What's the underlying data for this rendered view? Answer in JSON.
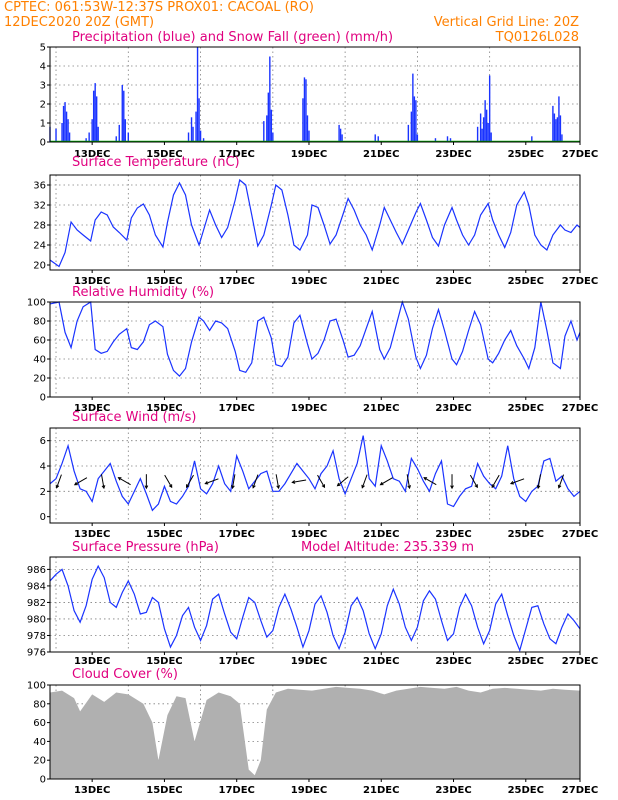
{
  "header": {
    "line1_left": "CPTEC:  061:53W-12:37S   PROX01: CACOAL (RO)",
    "line2_left": "12DEC2020 20Z (GMT)",
    "line2_right": "Vertical Grid Line: 20Z",
    "line3_right": "TQ0126L028"
  },
  "colors": {
    "precip": "#1a33ff",
    "snow": "#00aa00",
    "line": "#1a33ff",
    "arrow": "#000000",
    "cloud": "#b0b0b0",
    "header": "#ff8000",
    "title": "#e0007f"
  },
  "x_axis": {
    "start": "2020-12-12 20Z",
    "end": "2020-12-27 00Z",
    "tick_labels": [
      "13DEC",
      "15DEC",
      "17DEC",
      "19DEC",
      "21DEC",
      "23DEC",
      "25DEC",
      "27DEC"
    ]
  },
  "chart_data": [
    {
      "type": "bar",
      "title": "Precipitation (blue) and Snow Fall (green) (mm/h)",
      "ylim": [
        0,
        5
      ],
      "yticks": [
        "0",
        "1",
        "2",
        "3",
        "4",
        "5"
      ],
      "grid": true,
      "series": [
        {
          "name": "Precipitation",
          "color": "#1a33ff",
          "points": [
            [
              "12DEC20Z",
              0.8
            ],
            [
              "13DEC00Z",
              0.7
            ],
            [
              "13DEC04Z",
              1.0
            ],
            [
              "13DEC05Z",
              1.9
            ],
            [
              "13DEC06Z",
              2.1
            ],
            [
              "13DEC07Z",
              1.6
            ],
            [
              "13DEC08Z",
              1.2
            ],
            [
              "13DEC09Z",
              0.5
            ],
            [
              "13DEC20Z",
              0.2
            ],
            [
              "13DEC22Z",
              0.5
            ],
            [
              "14DEC00Z",
              1.2
            ],
            [
              "14DEC01Z",
              2.7
            ],
            [
              "14DEC02Z",
              3.1
            ],
            [
              "14DEC03Z",
              2.4
            ],
            [
              "14DEC04Z",
              0.8
            ],
            [
              "14DEC16Z",
              0.3
            ],
            [
              "14DEC18Z",
              0.9
            ],
            [
              "14DEC20Z",
              3.0
            ],
            [
              "14DEC21Z",
              2.7
            ],
            [
              "14DEC22Z",
              1.2
            ],
            [
              "15DEC00Z",
              0.5
            ],
            [
              "16DEC16Z",
              0.5
            ],
            [
              "16DEC18Z",
              1.3
            ],
            [
              "16DEC19Z",
              0.8
            ],
            [
              "16DEC21Z",
              1.6
            ],
            [
              "16DEC22Z",
              5.0
            ],
            [
              "16DEC23Z",
              2.3
            ],
            [
              "17DEC00Z",
              0.6
            ],
            [
              "17DEC02Z",
              0.2
            ],
            [
              "18DEC18Z",
              1.1
            ],
            [
              "18DEC20Z",
              1.4
            ],
            [
              "18DEC21Z",
              2.6
            ],
            [
              "18DEC22Z",
              4.5
            ],
            [
              "18DEC23Z",
              1.7
            ],
            [
              "19DEC00Z",
              0.5
            ],
            [
              "19DEC20Z",
              2.3
            ],
            [
              "19DEC21Z",
              3.4
            ],
            [
              "19DEC22Z",
              3.3
            ],
            [
              "19DEC23Z",
              1.4
            ],
            [
              "20DEC00Z",
              0.6
            ],
            [
              "20DEC20Z",
              0.9
            ],
            [
              "20DEC21Z",
              0.7
            ],
            [
              "20DEC22Z",
              0.4
            ],
            [
              "21DEC20Z",
              0.4
            ],
            [
              "21DEC22Z",
              0.3
            ],
            [
              "22DEC18Z",
              0.9
            ],
            [
              "22DEC20Z",
              1.6
            ],
            [
              "22DEC21Z",
              3.6
            ],
            [
              "22DEC22Z",
              2.4
            ],
            [
              "22DEC23Z",
              2.2
            ],
            [
              "23DEC00Z",
              0.4
            ],
            [
              "23DEC12Z",
              0.2
            ],
            [
              "23DEC20Z",
              0.3
            ],
            [
              "23DEC22Z",
              0.2
            ],
            [
              "24DEC16Z",
              0.8
            ],
            [
              "24DEC18Z",
              1.5
            ],
            [
              "24DEC19Z",
              0.7
            ],
            [
              "24DEC20Z",
              1.3
            ],
            [
              "24DEC21Z",
              2.2
            ],
            [
              "24DEC22Z",
              1.7
            ],
            [
              "24DEC23Z",
              1.0
            ],
            [
              "25DEC00Z",
              3.5
            ],
            [
              "25DEC01Z",
              0.5
            ],
            [
              "26DEC04Z",
              0.3
            ],
            [
              "26DEC18Z",
              1.9
            ],
            [
              "26DEC19Z",
              1.5
            ],
            [
              "26DEC20Z",
              1.2
            ],
            [
              "26DEC21Z",
              1.3
            ],
            [
              "26DEC22Z",
              2.4
            ],
            [
              "26DEC23Z",
              1.4
            ],
            [
              "27DEC00Z",
              0.4
            ]
          ]
        },
        {
          "name": "Snow Fall",
          "color": "#00aa00",
          "value": 0.0
        }
      ]
    },
    {
      "type": "line",
      "title": "Surface Temperature (nC)",
      "ylim": [
        19,
        38
      ],
      "yticks": [
        "20",
        "24",
        "28",
        "32",
        "36"
      ],
      "ytick_values": [
        20,
        24,
        28,
        32,
        36
      ],
      "grid": true,
      "x": [
        0,
        6,
        10,
        14,
        18,
        22,
        27,
        30,
        34,
        38,
        42,
        46,
        51,
        54,
        58,
        62,
        66,
        70,
        75,
        78,
        82,
        86,
        90,
        94,
        99,
        102,
        106,
        110,
        114,
        118,
        123,
        126,
        130,
        134,
        138,
        142,
        147,
        150,
        154,
        158,
        162,
        166,
        171,
        174,
        178,
        182,
        186,
        190,
        195,
        198,
        202,
        206,
        210,
        214,
        219,
        222,
        226,
        230,
        234,
        238,
        243,
        246,
        250,
        254,
        258,
        262,
        267,
        270,
        274,
        278,
        282,
        286,
        291,
        294,
        298,
        302,
        306,
        310,
        315,
        318,
        322,
        326,
        330,
        334,
        339,
        342,
        346,
        350,
        352
      ],
      "y": [
        21.0,
        19.7,
        22.5,
        28.6,
        27.0,
        26.0,
        24.8,
        29.0,
        30.6,
        30.0,
        27.6,
        26.5,
        25.0,
        29.4,
        31.4,
        32.2,
        30.0,
        26.0,
        23.6,
        28.5,
        34.0,
        36.4,
        34.0,
        28.0,
        24.0,
        27.0,
        31.0,
        28.0,
        25.5,
        27.5,
        33.0,
        37.0,
        36.0,
        30.0,
        23.8,
        26.0,
        32.0,
        36.0,
        35.0,
        30.0,
        24.0,
        23.0,
        26.0,
        32.0,
        31.5,
        28.0,
        24.2,
        26.0,
        30.5,
        33.3,
        31.0,
        28.0,
        26.0,
        23.0,
        28.0,
        31.5,
        29.0,
        26.5,
        24.2,
        27.0,
        30.5,
        32.3,
        29.0,
        25.5,
        23.8,
        28.0,
        31.5,
        29.0,
        26.0,
        24.0,
        26.0,
        30.0,
        32.3,
        29.0,
        26.0,
        23.5,
        26.5,
        32.0,
        34.6,
        32.0,
        26.0,
        24.0,
        23.0,
        26.0,
        28.0,
        27.0,
        26.5,
        28.0,
        27.5
      ]
    },
    {
      "type": "line",
      "title": "Relative Humidity (%)",
      "ylim": [
        0,
        100
      ],
      "yticks": [
        "0",
        "20",
        "40",
        "60",
        "80",
        "100"
      ],
      "ytick_values": [
        0,
        20,
        40,
        60,
        80,
        100
      ],
      "grid": true,
      "x": [
        0,
        6,
        10,
        14,
        18,
        22,
        27,
        30,
        34,
        38,
        42,
        46,
        51,
        54,
        58,
        62,
        66,
        70,
        75,
        78,
        82,
        86,
        90,
        94,
        99,
        102,
        106,
        110,
        114,
        118,
        123,
        126,
        130,
        134,
        138,
        142,
        147,
        150,
        154,
        158,
        162,
        166,
        171,
        174,
        178,
        182,
        186,
        190,
        195,
        198,
        202,
        206,
        210,
        214,
        219,
        222,
        226,
        230,
        234,
        238,
        243,
        246,
        250,
        254,
        258,
        262,
        267,
        270,
        274,
        278,
        282,
        286,
        291,
        294,
        298,
        302,
        306,
        310,
        315,
        318,
        322,
        326,
        330,
        334,
        339,
        342,
        346,
        350,
        352
      ],
      "y": [
        98,
        100,
        68,
        52,
        80,
        95,
        100,
        50,
        46,
        48,
        58,
        66,
        72,
        52,
        50,
        58,
        76,
        80,
        74,
        45,
        28,
        22,
        30,
        58,
        84,
        80,
        70,
        80,
        78,
        72,
        48,
        28,
        26,
        36,
        80,
        84,
        62,
        34,
        32,
        42,
        78,
        86,
        56,
        40,
        46,
        60,
        80,
        82,
        58,
        42,
        44,
        54,
        72,
        90,
        50,
        40,
        52,
        76,
        100,
        82,
        42,
        30,
        44,
        72,
        92,
        70,
        40,
        34,
        48,
        70,
        90,
        76,
        40,
        36,
        46,
        60,
        70,
        54,
        40,
        30,
        52,
        100,
        70,
        36,
        30,
        64,
        80,
        60,
        68
      ]
    },
    {
      "type": "line",
      "title": "Surface Wind (m/s)",
      "ylim": [
        -0.5,
        7
      ],
      "yticks": [
        "0",
        "2",
        "4",
        "6"
      ],
      "ytick_values": [
        0,
        2,
        4,
        6
      ],
      "grid": true,
      "x": [
        0,
        4,
        8,
        12,
        16,
        20,
        24,
        28,
        32,
        36,
        40,
        44,
        48,
        52,
        56,
        60,
        64,
        68,
        72,
        76,
        80,
        84,
        88,
        92,
        96,
        100,
        104,
        108,
        112,
        116,
        120,
        124,
        128,
        132,
        136,
        140,
        144,
        148,
        152,
        156,
        160,
        164,
        168,
        172,
        176,
        180,
        184,
        188,
        192,
        196,
        200,
        204,
        208,
        212,
        216,
        220,
        224,
        228,
        232,
        236,
        240,
        244,
        248,
        252,
        256,
        260,
        264,
        268,
        272,
        276,
        280,
        284,
        288,
        292,
        296,
        300,
        304,
        308,
        312,
        316,
        320,
        324,
        328,
        332,
        336,
        340,
        344,
        348,
        352
      ],
      "y": [
        2.6,
        3.0,
        4.2,
        5.6,
        3.6,
        2.2,
        2.0,
        1.2,
        3.0,
        3.6,
        4.2,
        2.8,
        1.6,
        1.0,
        2.0,
        3.0,
        1.8,
        0.5,
        1.0,
        2.4,
        1.2,
        1.0,
        1.6,
        2.4,
        4.4,
        2.2,
        1.8,
        2.6,
        4.0,
        2.6,
        2.0,
        4.8,
        3.6,
        2.2,
        2.8,
        3.4,
        3.6,
        2.0,
        2.0,
        2.6,
        3.4,
        4.2,
        3.6,
        3.0,
        2.2,
        3.4,
        4.0,
        5.2,
        3.0,
        1.8,
        3.0,
        4.2,
        6.4,
        3.0,
        2.4,
        5.6,
        4.4,
        3.0,
        2.8,
        2.0,
        4.6,
        3.8,
        2.8,
        2.0,
        3.4,
        4.4,
        1.0,
        0.8,
        1.6,
        2.2,
        2.4,
        4.2,
        3.2,
        2.6,
        2.2,
        3.2,
        5.6,
        3.0,
        1.6,
        1.2,
        2.0,
        2.4,
        4.4,
        4.6,
        2.8,
        3.2,
        2.2,
        1.6,
        2.0
      ]
    },
    {
      "type": "line",
      "title": "Surface Pressure (hPa)",
      "annotation": "Model Altitude: 235.339 m",
      "ylim": [
        976,
        987.5
      ],
      "yticks": [
        "976",
        "978",
        "980",
        "982",
        "984",
        "986"
      ],
      "ytick_values": [
        976,
        978,
        980,
        982,
        984,
        986
      ],
      "grid": true,
      "x": [
        0,
        4,
        8,
        12,
        16,
        20,
        24,
        28,
        32,
        36,
        40,
        44,
        48,
        52,
        56,
        60,
        64,
        68,
        72,
        76,
        80,
        84,
        88,
        92,
        96,
        100,
        104,
        108,
        112,
        116,
        120,
        124,
        128,
        132,
        136,
        140,
        144,
        148,
        152,
        156,
        160,
        164,
        168,
        172,
        176,
        180,
        184,
        188,
        192,
        196,
        200,
        204,
        208,
        212,
        216,
        220,
        224,
        228,
        232,
        236,
        240,
        244,
        248,
        252,
        256,
        260,
        264,
        268,
        272,
        276,
        280,
        284,
        288,
        292,
        296,
        300,
        304,
        308,
        312,
        316,
        320,
        324,
        328,
        332,
        336,
        340,
        344,
        348,
        352
      ],
      "y": [
        984.6,
        985.4,
        986.0,
        984.0,
        981.0,
        979.6,
        981.6,
        984.8,
        986.4,
        985.0,
        982.0,
        981.4,
        983.2,
        984.6,
        983.0,
        980.6,
        980.8,
        982.6,
        982.0,
        978.8,
        976.6,
        978.0,
        980.4,
        981.4,
        979.0,
        977.4,
        979.2,
        982.4,
        983.0,
        980.6,
        978.4,
        977.6,
        980.2,
        982.6,
        982.0,
        979.8,
        977.8,
        978.6,
        981.4,
        983.0,
        981.2,
        979.0,
        976.6,
        978.6,
        981.8,
        982.8,
        980.8,
        978.0,
        976.4,
        978.4,
        981.6,
        982.6,
        981.0,
        978.2,
        976.4,
        978.2,
        981.6,
        983.6,
        981.8,
        979.0,
        977.4,
        979.0,
        982.2,
        983.4,
        982.4,
        979.8,
        977.4,
        978.2,
        981.4,
        983.0,
        981.6,
        979.0,
        977.0,
        978.6,
        981.8,
        983.0,
        980.4,
        978.0,
        976.2,
        978.8,
        981.4,
        981.6,
        979.4,
        977.6,
        977.0,
        979.0,
        980.6,
        979.8,
        978.8
      ]
    },
    {
      "type": "area",
      "title": "Cloud Cover (%)",
      "ylim": [
        0,
        100
      ],
      "yticks": [
        "0",
        "20",
        "40",
        "60",
        "80",
        "100"
      ],
      "ytick_values": [
        0,
        20,
        40,
        60,
        80,
        100
      ],
      "grid": true,
      "x": [
        0,
        8,
        16,
        20,
        28,
        36,
        44,
        52,
        56,
        62,
        68,
        72,
        78,
        84,
        90,
        96,
        104,
        112,
        120,
        126,
        132,
        136,
        140,
        144,
        150,
        158,
        166,
        174,
        182,
        190,
        198,
        206,
        214,
        222,
        230,
        238,
        246,
        254,
        262,
        270,
        278,
        286,
        294,
        302,
        310,
        318,
        326,
        334,
        342,
        352
      ],
      "y": [
        92,
        94,
        86,
        72,
        90,
        82,
        92,
        90,
        86,
        80,
        60,
        20,
        68,
        88,
        86,
        40,
        84,
        92,
        88,
        80,
        10,
        4,
        20,
        74,
        92,
        96,
        95,
        94,
        96,
        98,
        97,
        96,
        94,
        90,
        94,
        96,
        98,
        97,
        96,
        98,
        94,
        92,
        96,
        97,
        96,
        95,
        94,
        96,
        95,
        94
      ]
    }
  ]
}
